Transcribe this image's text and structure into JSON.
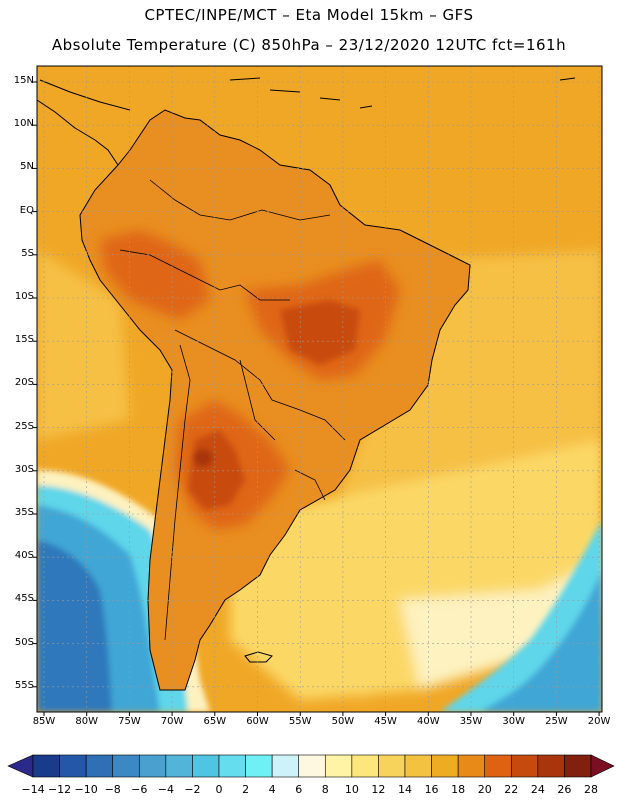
{
  "title_line1": "CPTEC/INPE/MCT –  Eta Model 15km – GFS",
  "title_line2": "Absolute Temperature (C) 850hPa – 23/12/2020 12UTC fct=161h",
  "lat_labels": [
    "15N",
    "10N",
    "5N",
    "EQ",
    "5S",
    "10S",
    "15S",
    "20S",
    "25S",
    "30S",
    "35S",
    "40S",
    "45S",
    "50S",
    "55S"
  ],
  "lon_labels": [
    "85W",
    "80W",
    "75W",
    "70W",
    "65W",
    "60W",
    "55W",
    "50W",
    "45W",
    "40W",
    "35W",
    "30W",
    "25W",
    "20W"
  ],
  "colorbar": {
    "labels": [
      "-14",
      "-12",
      "-10",
      "-8",
      "-6",
      "-4",
      "-2",
      "0",
      "2",
      "4",
      "6",
      "8",
      "10",
      "12",
      "14",
      "16",
      "18",
      "20",
      "22",
      "24",
      "26",
      "28"
    ],
    "colors": [
      "#1a3a8c",
      "#2457a8",
      "#2e6fb6",
      "#3b88c4",
      "#4aa0cf",
      "#53b4da",
      "#4fc4e3",
      "#66dcef",
      "#6ff0f5",
      "#cdf3f8",
      "#fff8e0",
      "#fff4a6",
      "#fde67c",
      "#f8d35c",
      "#f2c240",
      "#eeac22",
      "#e88a17",
      "#de6210",
      "#c64a0e",
      "#a8350b",
      "#822010"
    ],
    "low_extend_color": "#2b2a8a",
    "high_extend_color": "#7a0f24"
  },
  "palette": {
    "sea_far": "#f0a726",
    "sea_mid": "#f6c044",
    "sea_light": "#fbd866",
    "pale": "#fdf2c0",
    "cold1": "#5ed6ea",
    "cold2": "#3fa6d6",
    "cold3": "#2e78bb",
    "land": "#e98e20",
    "land_hot": "#df6613",
    "land_hotter": "#c84c10",
    "hotspot": "#a8350b",
    "grid": "#9a9a9a",
    "coast": "#000000"
  }
}
